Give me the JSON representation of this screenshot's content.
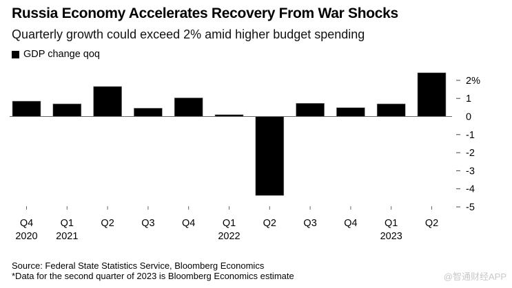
{
  "header": {
    "title": "Russia Economy Accelerates Recovery From War Shocks",
    "subtitle": "Quarterly growth could exceed 2% amid higher budget spending"
  },
  "chart_data": {
    "type": "bar",
    "title": "Russia Economy Accelerates Recovery From War Shocks",
    "subtitle": "Quarterly growth could exceed 2% amid higher budget spending",
    "xlabel": "",
    "ylabel": "",
    "legend": {
      "placement": "top-left",
      "entries": [
        {
          "name": "GDP change qoq",
          "color": "#000000"
        }
      ]
    },
    "categories": [
      "Q4 2020",
      "Q1 2021",
      "Q2 2021",
      "Q3 2021",
      "Q4 2021",
      "Q1 2022",
      "Q2 2022",
      "Q3 2022",
      "Q4 2022",
      "Q1 2023",
      "Q2 2023"
    ],
    "x_tick_labels": [
      {
        "quarter": "Q4",
        "year": "2020"
      },
      {
        "quarter": "Q1",
        "year": "2021"
      },
      {
        "quarter": "Q2",
        "year": ""
      },
      {
        "quarter": "Q3",
        "year": ""
      },
      {
        "quarter": "Q4",
        "year": ""
      },
      {
        "quarter": "Q1",
        "year": "2022"
      },
      {
        "quarter": "Q2",
        "year": ""
      },
      {
        "quarter": "Q3",
        "year": ""
      },
      {
        "quarter": "Q4",
        "year": ""
      },
      {
        "quarter": "Q1",
        "year": "2023"
      },
      {
        "quarter": "Q2",
        "year": ""
      }
    ],
    "series": [
      {
        "name": "GDP change qoq",
        "color": "#000000",
        "values": [
          0.85,
          0.7,
          1.66,
          0.46,
          1.03,
          0.1,
          -4.37,
          0.73,
          0.49,
          0.7,
          2.42
        ]
      }
    ],
    "ylim": [
      -5,
      2.5
    ],
    "y_ticks": [
      2,
      1,
      0,
      -1,
      -2,
      -3,
      -4,
      -5
    ],
    "y_tick_labels": [
      "2%",
      "1",
      "0",
      "-1",
      "-2",
      "-3",
      "-4",
      "-5"
    ],
    "y_axis_side": "right",
    "grid": false
  },
  "footer": {
    "source": "Source: Federal State Statistics Service, Bloomberg Economics",
    "note": "*Data for the second quarter of 2023 is Bloomberg Economics estimate",
    "watermark": "@智通财经APP"
  }
}
